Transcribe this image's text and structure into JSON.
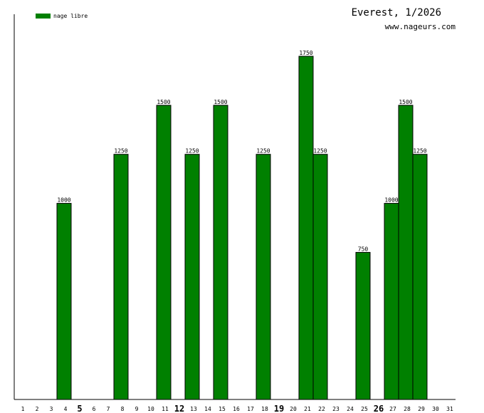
{
  "chart_data": {
    "type": "bar",
    "title": "Everest, 1/2026",
    "subtitle": "www.nageurs.com",
    "legend": {
      "placement": "top-left",
      "entries": [
        {
          "name": "nage libre",
          "color": "#008000"
        }
      ]
    },
    "x": [
      "1",
      "2",
      "3",
      "4",
      "5",
      "6",
      "7",
      "8",
      "9",
      "10",
      "11",
      "12",
      "13",
      "14",
      "15",
      "16",
      "17",
      "18",
      "19",
      "20",
      "21",
      "22",
      "23",
      "24",
      "25",
      "26",
      "27",
      "28",
      "29",
      "30",
      "31"
    ],
    "emphasized_days": [
      "5",
      "12",
      "19",
      "26"
    ],
    "series": [
      {
        "name": "nage libre",
        "color": "#008000",
        "values": [
          null,
          null,
          null,
          1000,
          null,
          null,
          null,
          1250,
          null,
          null,
          1500,
          null,
          1250,
          null,
          1500,
          null,
          null,
          1250,
          null,
          null,
          1750,
          1250,
          null,
          null,
          750,
          null,
          1000,
          1500,
          1250,
          null,
          null
        ]
      }
    ],
    "ylim": [
      0,
      2000
    ],
    "grid": false
  }
}
